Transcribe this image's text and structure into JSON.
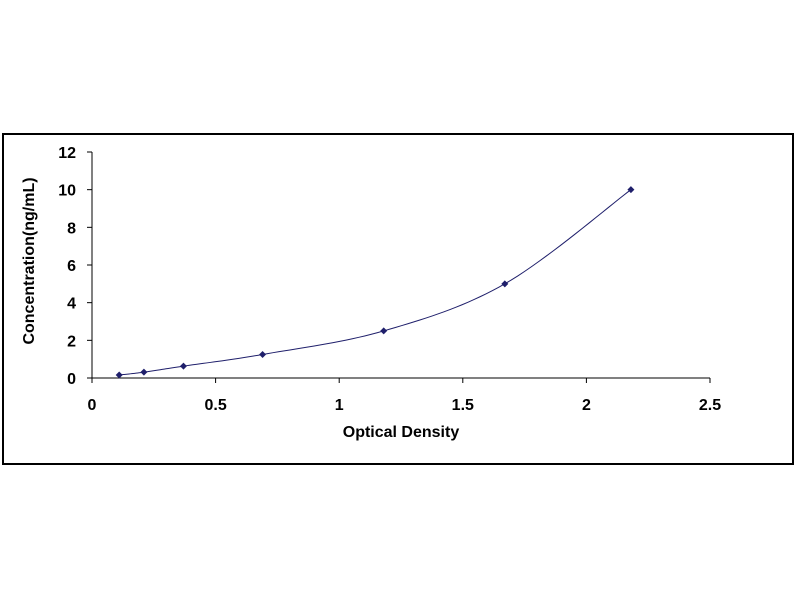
{
  "chart_data": {
    "type": "scatter",
    "title": "",
    "xlabel": "Optical Density",
    "ylabel": "Concentration(ng/mL)",
    "xlim": [
      0,
      2.5
    ],
    "ylim": [
      0,
      12
    ],
    "x_ticks": [
      "0",
      "0.5",
      "1",
      "1.5",
      "2",
      "2.5"
    ],
    "y_ticks": [
      "0",
      "2",
      "4",
      "6",
      "8",
      "10",
      "12"
    ],
    "x_tick_values": [
      0,
      0.5,
      1,
      1.5,
      2,
      2.5
    ],
    "y_tick_values": [
      0,
      2,
      4,
      6,
      8,
      10,
      12
    ],
    "grid": false,
    "legend": "none",
    "marker": "diamond",
    "curve": "smooth-fit",
    "color": "#1f1f6b",
    "series": [
      {
        "x": [
          0.11,
          0.21,
          0.37,
          0.69,
          1.18,
          1.67,
          2.18
        ],
        "y": [
          0.16,
          0.31,
          0.63,
          1.25,
          2.5,
          5.0,
          10.0
        ]
      }
    ]
  }
}
